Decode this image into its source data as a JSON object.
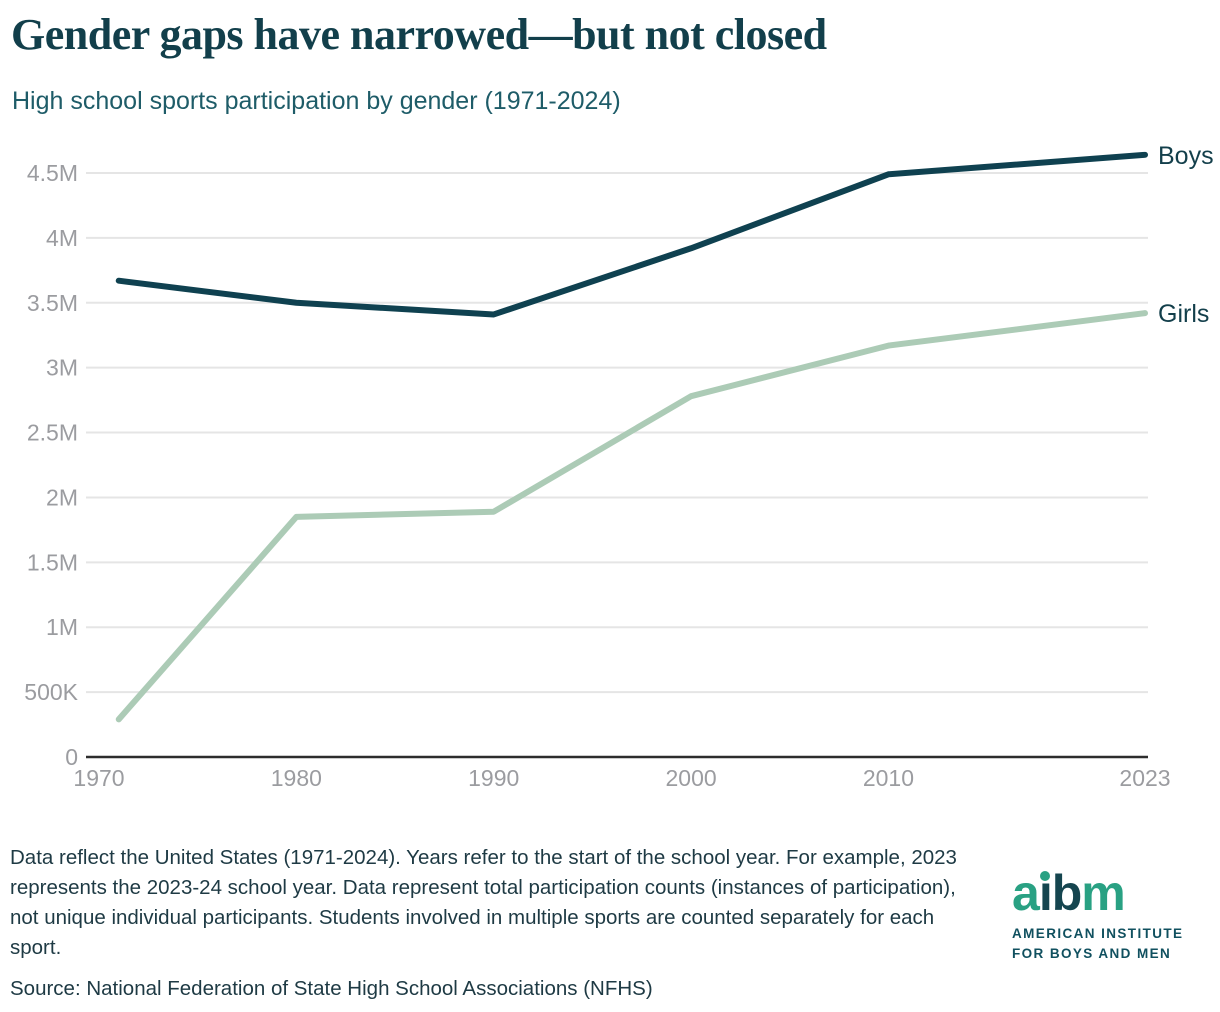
{
  "header": {
    "title": "Gender gaps have narrowed—but not closed",
    "subtitle": "High school sports participation by gender (1971-2024)"
  },
  "chart_data": {
    "type": "line",
    "title": "High school sports participation by gender (1971-2024)",
    "x": [
      1971,
      1980,
      1990,
      2000,
      2010,
      2023
    ],
    "series": [
      {
        "name": "Boys",
        "color": "#0f4150",
        "values_millions": [
          3.67,
          3.5,
          3.41,
          3.92,
          4.49,
          4.64
        ]
      },
      {
        "name": "Girls",
        "color": "#accbb6",
        "values_millions": [
          0.29,
          1.85,
          1.89,
          2.78,
          3.17,
          3.42
        ]
      }
    ],
    "unit": "total participation counts (millions)",
    "xlim": [
      1970,
      2023
    ],
    "ylim": [
      0,
      4.75
    ],
    "x_tick_years": [
      1970,
      1980,
      1990,
      2000,
      2010,
      2023
    ],
    "x_tick_labels": [
      "1970",
      "1980",
      "1990",
      "2000",
      "2010",
      "2023"
    ],
    "y_tick_values": [
      0,
      0.5,
      1,
      1.5,
      2,
      2.5,
      3,
      3.5,
      4,
      4.5
    ],
    "y_tick_labels": [
      "0",
      "500K",
      "1M",
      "1.5M",
      "2M",
      "2.5M",
      "3M",
      "3.5M",
      "4M",
      "4.5M"
    ],
    "grid": "horizontal",
    "legend": "line-end-labels",
    "colors": {
      "grid": "#e5e5e5",
      "axis": "#2d2d2d",
      "tick_label": "#9b9ca0",
      "end_label": "#133f4b"
    }
  },
  "footer": {
    "note": "Data reflect the United States (1971-2024). Years refer to the start of the school year. For example, 2023 represents the 2023-24 school year. Data represent total participation counts (instances of participation), not unique individual participants. Students involved in multiple sports are counted separately for each sport.",
    "source": "Source: National Federation of State High School Associations (NFHS)"
  },
  "logo": {
    "word": "aibm",
    "letter_styles": [
      "green",
      "dark-with-green-dot",
      "dark",
      "green"
    ],
    "green": "#29a183",
    "dark": "#15454f",
    "line1": "AMERICAN INSTITUTE",
    "line2": "FOR BOYS AND MEN"
  }
}
